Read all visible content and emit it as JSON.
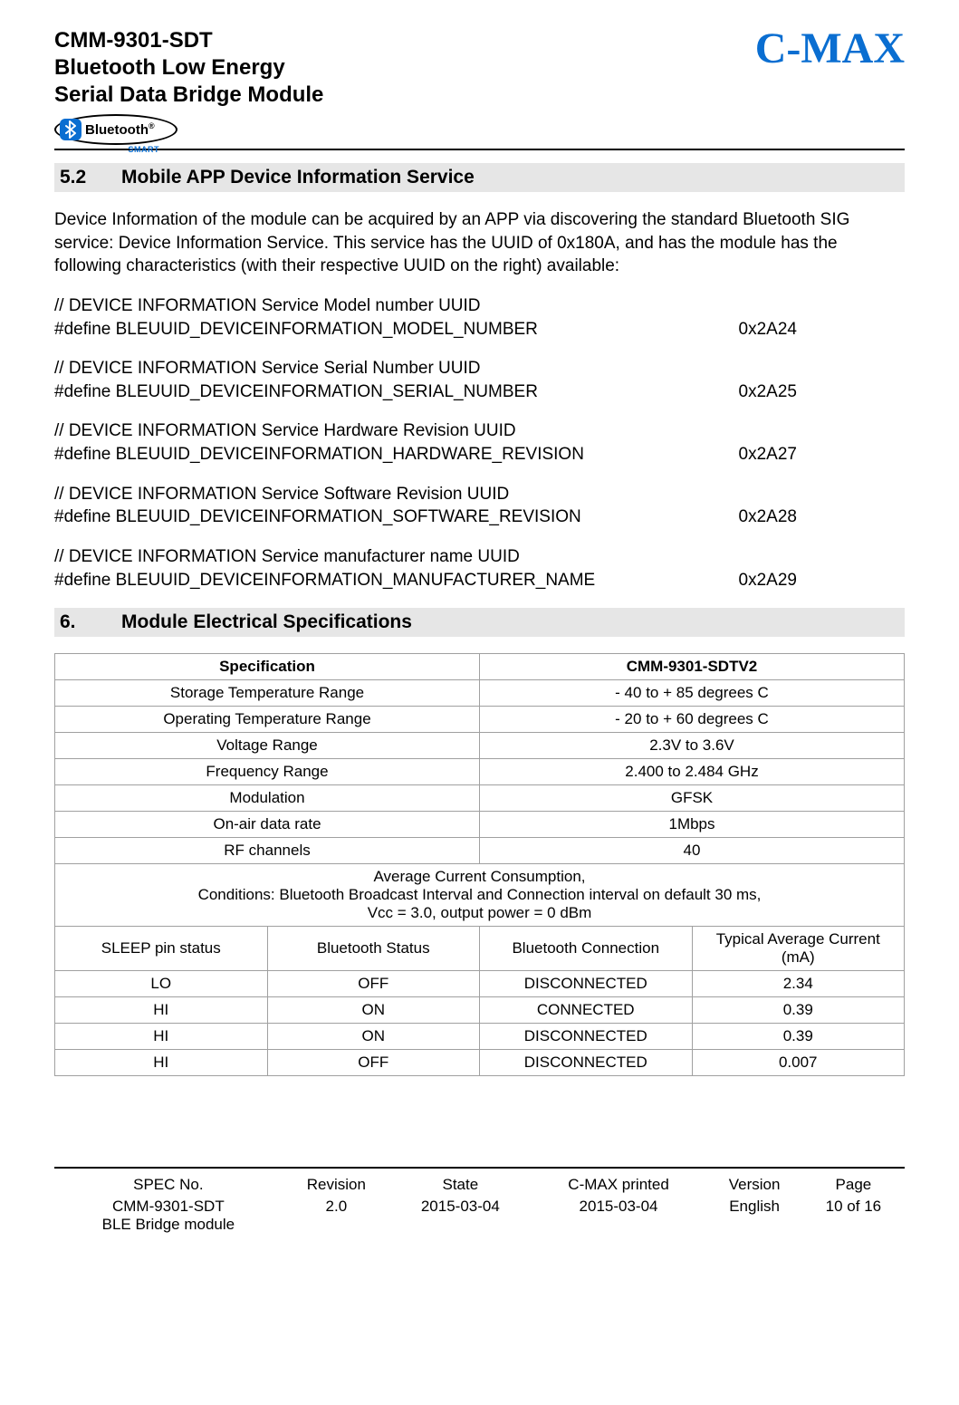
{
  "header": {
    "title_line1": "CMM-9301-SDT",
    "title_line2": "Bluetooth Low Energy",
    "title_line3": "Serial Data Bridge Module",
    "bluetooth_word": "Bluetooth",
    "bluetooth_reg": "®",
    "bluetooth_smart": "SMART",
    "brand": "C-MAX",
    "brand_color": "#0a6ed1"
  },
  "section52": {
    "number": "5.2",
    "title": "Mobile APP Device Information Service",
    "intro": "Device Information of the module can be acquired by an APP via discovering the standard Bluetooth SIG service: Device Information Service. This service has the UUID of 0x180A, and has the module has the following characteristics (with their respective UUID on the right) available:",
    "defs": [
      {
        "comment": "// DEVICE INFORMATION Service Model number UUID",
        "macro": "#define BLEUUID_DEVICEINFORMATION_MODEL_NUMBER",
        "value": "0x2A24"
      },
      {
        "comment": "// DEVICE INFORMATION Service Serial Number UUID",
        "macro": "#define BLEUUID_DEVICEINFORMATION_SERIAL_NUMBER",
        "value": "0x2A25"
      },
      {
        "comment": "// DEVICE INFORMATION Service Hardware Revision UUID",
        "macro": "#define BLEUUID_DEVICEINFORMATION_HARDWARE_REVISION",
        "value": "0x2A27"
      },
      {
        "comment": "// DEVICE INFORMATION Service Software Revision UUID",
        "macro": "#define BLEUUID_DEVICEINFORMATION_SOFTWARE_REVISION",
        "value": "0x2A28"
      },
      {
        "comment": "// DEVICE INFORMATION Service manufacturer name UUID",
        "macro": "#define BLEUUID_DEVICEINFORMATION_MANUFACTURER_NAME",
        "value": "0x2A29"
      }
    ]
  },
  "section6": {
    "number": "6.",
    "title": "Module Electrical Specifications"
  },
  "specTable": {
    "col1_header": "Specification",
    "col2_header": "CMM-9301-SDTV2",
    "rows_top": [
      [
        "Storage Temperature Range",
        "- 40 to + 85 degrees C"
      ],
      [
        "Operating Temperature Range",
        "- 20 to + 60 degrees C"
      ],
      [
        "Voltage Range",
        "2.3V to 3.6V"
      ],
      [
        "Frequency Range",
        "2.400 to 2.484 GHz"
      ],
      [
        "Modulation",
        "GFSK"
      ],
      [
        "On-air data rate",
        "1Mbps"
      ],
      [
        "RF channels",
        "40"
      ]
    ],
    "conditions_l1": "Average Current Consumption,",
    "conditions_l2": "Conditions:  Bluetooth Broadcast Interval and Connection interval on default 30 ms,",
    "conditions_l3": "Vcc = 3.0, output power = 0 dBm",
    "sub_headers": [
      "SLEEP pin status",
      "Bluetooth Status",
      "Bluetooth Connection",
      "Typical Average Current (mA)"
    ],
    "rows_bottom": [
      [
        "LO",
        "OFF",
        "DISCONNECTED",
        "2.34"
      ],
      [
        "HI",
        "ON",
        "CONNECTED",
        "0.39"
      ],
      [
        "HI",
        "ON",
        "DISCONNECTED",
        "0.39"
      ],
      [
        "HI",
        "OFF",
        "DISCONNECTED",
        "0.007"
      ]
    ]
  },
  "footer": {
    "headers": [
      "SPEC No.",
      "Revision",
      "State",
      "C-MAX printed",
      "Version",
      "Page"
    ],
    "values": [
      "CMM-9301-SDT\nBLE Bridge module",
      "2.0",
      "2015-03-04",
      "2015-03-04",
      "English",
      "10 of 16"
    ]
  }
}
